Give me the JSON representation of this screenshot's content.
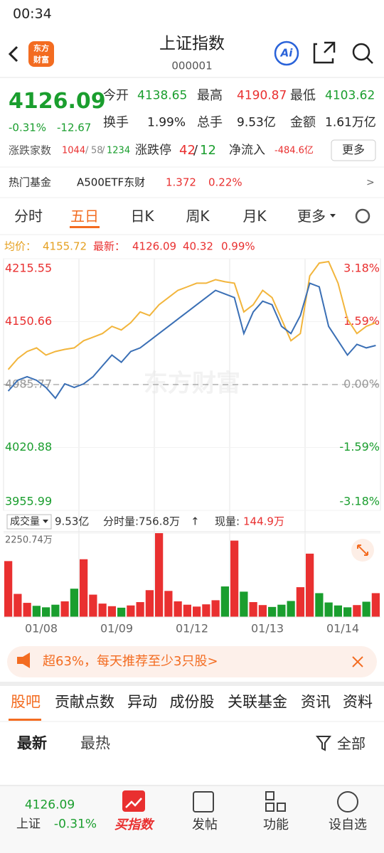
{
  "status": {
    "time": "00:34"
  },
  "header": {
    "title": "上证指数",
    "code": "000001",
    "logo": [
      "东方",
      "财富"
    ],
    "ai": "Ai"
  },
  "quote": {
    "price": "4126.09",
    "change_pct": "-0.31%",
    "change": "-12.67",
    "stats": [
      {
        "label": "今开",
        "value": "4138.65",
        "color": "#1a9e2e"
      },
      {
        "label": "最高",
        "value": "4190.87",
        "color": "#e93030"
      },
      {
        "label": "最低",
        "value": "4103.62",
        "color": "#1a9e2e"
      },
      {
        "label": "换手",
        "value": "1.99%",
        "color": "#222222"
      },
      {
        "label": "总手",
        "value": "9.53亿",
        "color": "#222222"
      },
      {
        "label": "金额",
        "value": "1.61万亿",
        "color": "#222222"
      }
    ],
    "breadth_label": "涨跌家数",
    "advancers": "1044",
    "sep": "/",
    "flat": "58",
    "decliners": "1234",
    "limit_label": "涨跌停",
    "limit_up": "42",
    "limit_down": "12",
    "inflow_label": "净流入",
    "inflow": "-484.6亿",
    "more": "更多"
  },
  "hot_fund": {
    "label": "热门基金",
    "name": "A500ETF东财",
    "price": "1.372",
    "pct": "0.22%",
    "arrow": ">"
  },
  "tabs": [
    "分时",
    "五日",
    "日K",
    "周K",
    "月K",
    "更多"
  ],
  "chart_info": {
    "avg_label": "均价：",
    "avg": "4155.72",
    "last_label": "最新：",
    "last": "4126.09",
    "chg": "40.32",
    "pct": "0.99%"
  },
  "chart_data": {
    "type": "line",
    "watermark": "东方财富",
    "categories": [
      "01/08",
      "01/09",
      "01/12",
      "01/13",
      "01/14"
    ],
    "ylim": [
      3955.99,
      4215.55
    ],
    "yticks": [
      {
        "value": 4215.55,
        "label": "4215.55"
      },
      {
        "value": 4150.66,
        "label": "4150.66"
      },
      {
        "value": 4085.77,
        "label": "4085.77"
      },
      {
        "value": 4020.88,
        "label": "4020.88"
      },
      {
        "value": 3955.99,
        "label": "3955.99"
      }
    ],
    "y2lim": [
      -3.18,
      3.18
    ],
    "y2ticks": [
      {
        "value": 3.18,
        "label": "3.18%"
      },
      {
        "value": 1.59,
        "label": "1.59%"
      },
      {
        "value": 0,
        "label": "0.00%"
      },
      {
        "value": -1.59,
        "label": "-1.59%"
      },
      {
        "value": -3.18,
        "label": "-3.18%"
      }
    ],
    "series": [
      {
        "name": "最新",
        "color": "#3a6fb5",
        "values": [
          [
            4079.1,
            4090.2,
            4093.9,
            4090.2,
            4082.8,
            4071.7,
            4086.5,
            4082.8
          ],
          [
            4086.5,
            4093.9,
            4105.1,
            4116.2,
            4108.8,
            4119.9,
            4123.6,
            4131.0
          ],
          [
            4138.4,
            4145.8,
            4153.3,
            4160.7,
            4168.1,
            4175.5,
            4182.9,
            4179.2
          ],
          [
            4175.5,
            4138.4,
            4160.7,
            4171.8,
            4168.1,
            4145.8,
            4138.4,
            4157.0
          ],
          [
            4190.3,
            4186.6,
            4145.8,
            4131.0,
            4116.2,
            4127.3,
            4123.6,
            4126.09
          ]
        ]
      },
      {
        "name": "均价",
        "color": "#f2b53c",
        "values": [
          [
            4101.3,
            4112.5,
            4119.9,
            4123.6,
            4116.2,
            4119.9,
            4122.1,
            4123.6
          ],
          [
            4131.0,
            4134.7,
            4138.4,
            4145.8,
            4142.1,
            4149.6,
            4160.7,
            4157.0
          ],
          [
            4168.1,
            4175.5,
            4182.9,
            4186.6,
            4190.3,
            4190.3,
            4194.0,
            4191.8
          ],
          [
            4190.3,
            4160.7,
            4168.1,
            4182.9,
            4175.5,
            4153.3,
            4131.0,
            4138.4
          ],
          [
            4197.8,
            4211.1,
            4212.6,
            4190.3,
            4153.3,
            4138.4,
            4145.8,
            4149.6
          ]
        ]
      }
    ],
    "volume": {
      "label": "成交量",
      "total": "9.53亿",
      "tick_vol": "分时量:756.8万",
      "arrow": "↑",
      "now_label": "现量:",
      "now": "144.9万",
      "up_color": "#e93030",
      "down_color": "#1a9e2e",
      "vlim": [
        0,
        2250.74
      ],
      "vticks": [
        {
          "value": 2250.74,
          "label": "2250.74万"
        }
      ],
      "values": [
        [
          1500,
          620,
          380,
          300,
          260,
          330,
          420,
          760
        ],
        [
          1550,
          600,
          360,
          290,
          250,
          310,
          400,
          720
        ],
        [
          2250,
          700,
          420,
          330,
          280,
          340,
          450,
          820
        ],
        [
          2050,
          680,
          400,
          320,
          270,
          330,
          430,
          800
        ],
        [
          1700,
          640,
          390,
          310,
          260,
          320,
          410,
          640
        ]
      ]
    }
  },
  "banner": "超63%，每天推荐至少3只股>",
  "sub_tabs": [
    "股吧",
    "贡献点数",
    "异动",
    "成份股",
    "关联基金",
    "资讯",
    "资料"
  ],
  "sort": {
    "latest": "最新",
    "hot": "最热",
    "filter": "全部"
  },
  "nav": {
    "price": "4126.09",
    "name": "上证",
    "pct": "-0.31%",
    "items": [
      "买指数",
      "发帖",
      "功能",
      "设自选"
    ]
  }
}
